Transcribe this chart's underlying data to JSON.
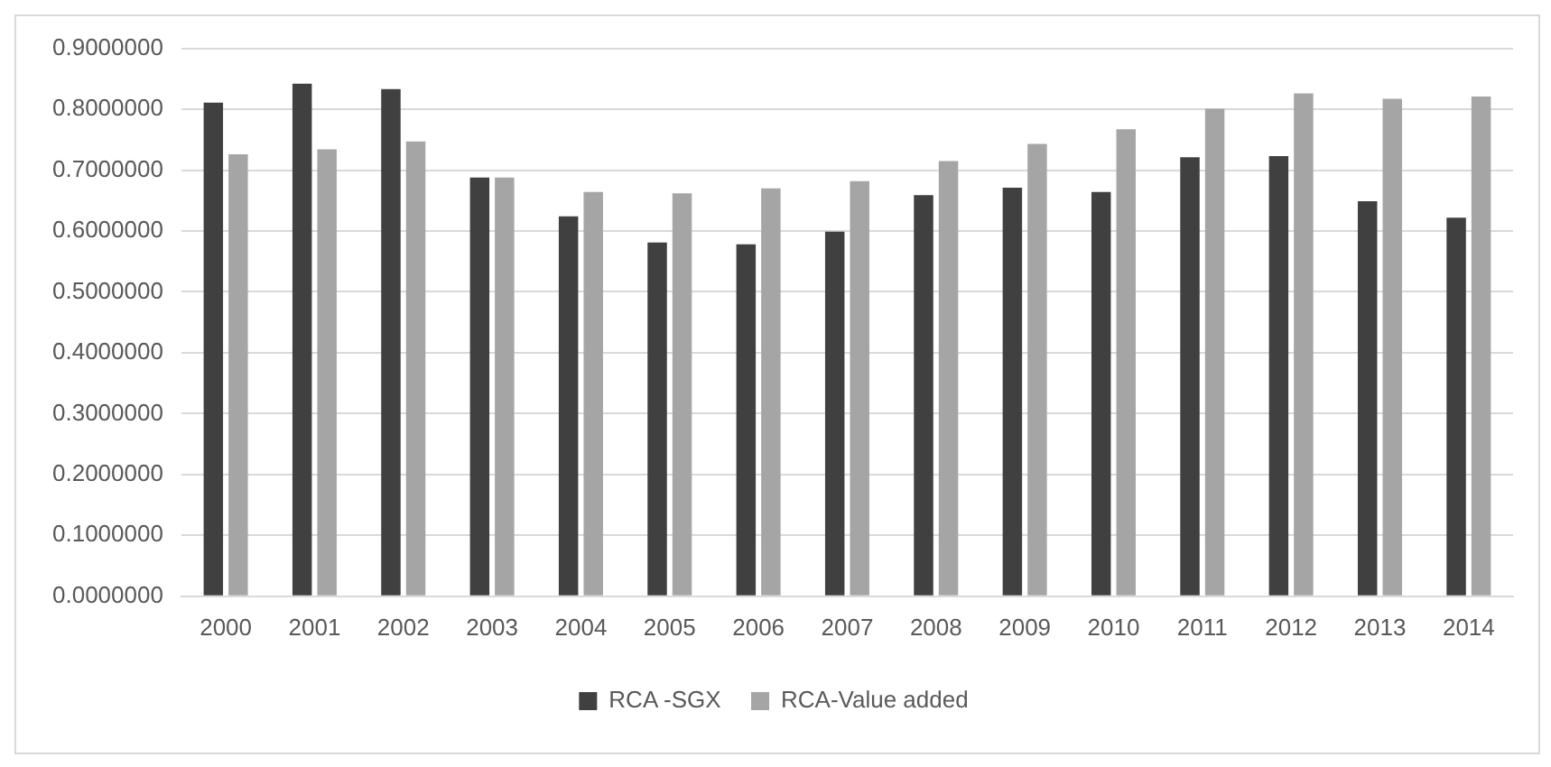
{
  "chart_data": {
    "type": "bar",
    "categories": [
      "2000",
      "2001",
      "2002",
      "2003",
      "2004",
      "2005",
      "2006",
      "2007",
      "2008",
      "2009",
      "2010",
      "2011",
      "2012",
      "2013",
      "2014"
    ],
    "series": [
      {
        "name": "RCA -SGX",
        "color": "#404040",
        "values": [
          0.811,
          0.842,
          0.833,
          0.688,
          0.624,
          0.581,
          0.578,
          0.599,
          0.659,
          0.671,
          0.664,
          0.721,
          0.723,
          0.649,
          0.622
        ]
      },
      {
        "name": "RCA-Value added",
        "color": "#a5a5a5",
        "values": [
          0.726,
          0.734,
          0.747,
          0.688,
          0.664,
          0.662,
          0.67,
          0.682,
          0.715,
          0.743,
          0.767,
          0.801,
          0.826,
          0.817,
          0.821
        ]
      }
    ],
    "ylim": [
      0,
      0.9
    ],
    "yticks": [
      {
        "value": 0,
        "label": "0.0000000"
      },
      {
        "value": 0.1,
        "label": "0.1000000"
      },
      {
        "value": 0.2,
        "label": "0.2000000"
      },
      {
        "value": 0.3,
        "label": "0.3000000"
      },
      {
        "value": 0.4,
        "label": "0.4000000"
      },
      {
        "value": 0.5,
        "label": "0.5000000"
      },
      {
        "value": 0.6,
        "label": "0.6000000"
      },
      {
        "value": 0.7,
        "label": "0.7000000"
      },
      {
        "value": 0.8,
        "label": "0.8000000"
      },
      {
        "value": 0.9,
        "label": "0.9000000"
      }
    ],
    "grid": "y",
    "legend": "bottom"
  }
}
